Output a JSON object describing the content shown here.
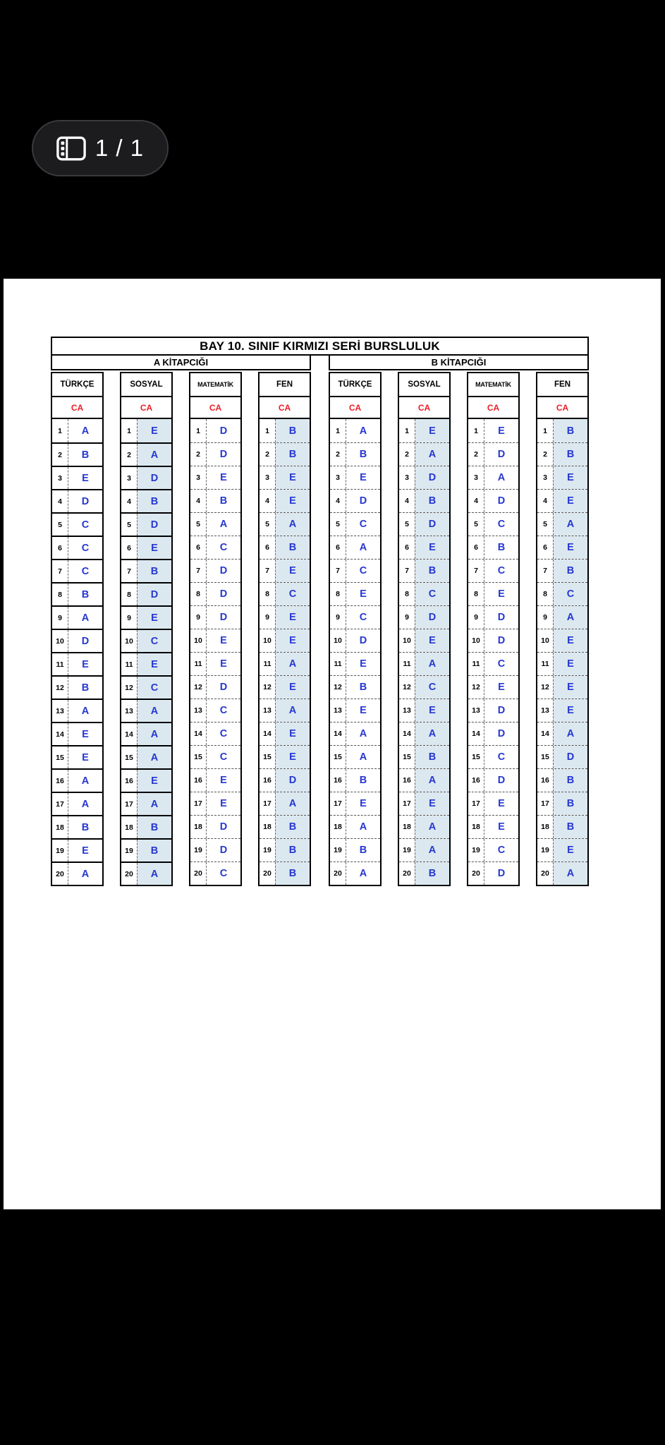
{
  "viewer": {
    "page_indicator": "1 / 1",
    "pill_icon": "sidebar-pages-icon",
    "colors": {
      "background": "#000000",
      "page": "#ffffff",
      "pill_bg": "#1c1c1e",
      "pill_border": "#3a3a3e",
      "pill_text": "#ffffff"
    }
  },
  "answer_key": {
    "title": "BAY 10. SINIF KIRMIZI SERİ BURSLULUK",
    "ca_label": "CA",
    "question_numbers": [
      1,
      2,
      3,
      4,
      5,
      6,
      7,
      8,
      9,
      10,
      11,
      12,
      13,
      14,
      15,
      16,
      17,
      18,
      19,
      20
    ],
    "colors": {
      "answer_blue": "#2637d2",
      "ca_red": "#ee1c24",
      "shade_blue": "#dbe8f0"
    },
    "sections": [
      {
        "label": "A KİTAPCIĞI",
        "subjects": [
          {
            "name": "TÜRKÇE",
            "shaded": false,
            "row_line": "solid",
            "answers": [
              "A",
              "B",
              "E",
              "D",
              "C",
              "C",
              "C",
              "B",
              "A",
              "D",
              "E",
              "B",
              "A",
              "E",
              "E",
              "A",
              "A",
              "B",
              "E",
              "A"
            ]
          },
          {
            "name": "SOSYAL",
            "shaded": true,
            "row_line": "solid",
            "answers": [
              "E",
              "A",
              "D",
              "B",
              "D",
              "E",
              "B",
              "D",
              "E",
              "C",
              "E",
              "C",
              "A",
              "A",
              "A",
              "E",
              "A",
              "B",
              "B",
              "A"
            ]
          },
          {
            "name": "MATEMATİK",
            "shaded": false,
            "row_line": "dashed",
            "answers": [
              "D",
              "D",
              "E",
              "B",
              "A",
              "C",
              "D",
              "D",
              "D",
              "E",
              "E",
              "D",
              "C",
              "C",
              "C",
              "E",
              "E",
              "D",
              "D",
              "C"
            ]
          },
          {
            "name": "FEN",
            "shaded": true,
            "row_line": "dashed",
            "answers": [
              "B",
              "B",
              "E",
              "E",
              "A",
              "B",
              "E",
              "C",
              "E",
              "E",
              "A",
              "E",
              "A",
              "E",
              "E",
              "D",
              "A",
              "B",
              "B",
              "B"
            ]
          }
        ]
      },
      {
        "label": "B KİTAPCIĞI",
        "subjects": [
          {
            "name": "TÜRKÇE",
            "shaded": false,
            "row_line": "dashed",
            "answers": [
              "A",
              "B",
              "E",
              "D",
              "C",
              "A",
              "C",
              "E",
              "C",
              "D",
              "E",
              "B",
              "E",
              "A",
              "A",
              "B",
              "E",
              "A",
              "B",
              "A"
            ]
          },
          {
            "name": "SOSYAL",
            "shaded": true,
            "row_line": "dashed",
            "answers": [
              "E",
              "A",
              "D",
              "B",
              "D",
              "E",
              "B",
              "C",
              "D",
              "E",
              "A",
              "C",
              "E",
              "A",
              "B",
              "A",
              "E",
              "A",
              "A",
              "B"
            ]
          },
          {
            "name": "MATEMATİK",
            "shaded": false,
            "row_line": "dashed",
            "answers": [
              "E",
              "D",
              "A",
              "D",
              "C",
              "B",
              "C",
              "E",
              "D",
              "D",
              "C",
              "E",
              "D",
              "D",
              "C",
              "D",
              "E",
              "E",
              "C",
              "D"
            ]
          },
          {
            "name": "FEN",
            "shaded": true,
            "row_line": "dashed",
            "answers": [
              "B",
              "B",
              "E",
              "E",
              "A",
              "E",
              "B",
              "C",
              "A",
              "E",
              "E",
              "E",
              "E",
              "A",
              "D",
              "B",
              "B",
              "B",
              "E",
              "A"
            ]
          }
        ]
      }
    ]
  }
}
